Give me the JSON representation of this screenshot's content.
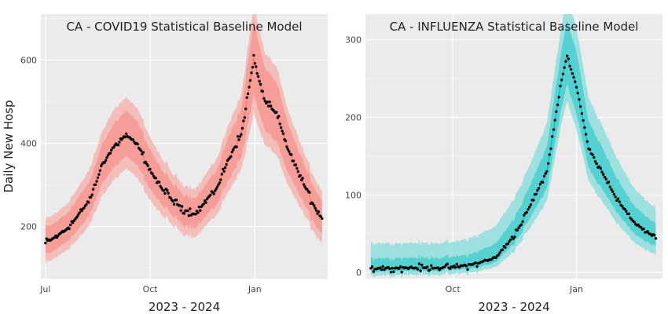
{
  "chart_data": [
    {
      "type": "line",
      "title": "CA - COVID19 Statistical Baseline Model",
      "xlabel": "2023 - 2024",
      "ylabel": "Daily New Hosp",
      "x_range": [
        "2023-06-27",
        "2024-03-05"
      ],
      "ylim": [
        75,
        710
      ],
      "y_ticks": [
        200,
        400,
        600
      ],
      "x_ticks": [
        {
          "date": "2023-07-01",
          "label": "Jul"
        },
        {
          "date": "2023-10-01",
          "label": "Oct"
        },
        {
          "date": "2024-01-01",
          "label": "Jan"
        }
      ],
      "grid": true,
      "legend": "none",
      "color_band": "#f4b6b0",
      "color_inner": "#f8766d",
      "color_points": "#000000",
      "x": [
        "2023-07-01",
        "2023-07-10",
        "2023-07-20",
        "2023-07-31",
        "2023-08-10",
        "2023-08-20",
        "2023-08-31",
        "2023-09-10",
        "2023-09-20",
        "2023-09-30",
        "2023-10-10",
        "2023-10-20",
        "2023-10-31",
        "2023-11-10",
        "2023-11-20",
        "2023-11-30",
        "2023-12-10",
        "2023-12-20",
        "2023-12-31",
        "2024-01-10",
        "2024-01-20",
        "2024-01-31",
        "2024-02-10",
        "2024-02-20",
        "2024-02-29"
      ],
      "y": [
        160,
        175,
        195,
        230,
        270,
        350,
        395,
        420,
        395,
        340,
        295,
        265,
        240,
        230,
        265,
        300,
        370,
        420,
        600,
        500,
        470,
        380,
        320,
        260,
        220
      ],
      "lower_80": [
        130,
        145,
        165,
        195,
        235,
        305,
        345,
        370,
        345,
        295,
        255,
        228,
        205,
        196,
        228,
        260,
        320,
        365,
        515,
        430,
        402,
        325,
        272,
        218,
        182
      ],
      "upper_80": [
        195,
        210,
        232,
        272,
        315,
        400,
        450,
        478,
        450,
        390,
        340,
        305,
        278,
        268,
        305,
        345,
        425,
        480,
        690,
        578,
        545,
        440,
        372,
        305,
        262
      ],
      "lower_95": [
        110,
        125,
        145,
        172,
        210,
        275,
        315,
        340,
        315,
        268,
        230,
        205,
        182,
        174,
        205,
        235,
        292,
        335,
        470,
        395,
        370,
        295,
        245,
        195,
        160
      ],
      "upper_95": [
        215,
        232,
        255,
        298,
        345,
        430,
        485,
        510,
        482,
        420,
        368,
        330,
        300,
        290,
        330,
        372,
        455,
        515,
        730,
        615,
        582,
        472,
        400,
        330,
        285
      ]
    },
    {
      "type": "line",
      "title": "CA - INFLUENZA Statistical Baseline Model",
      "xlabel": "2023 - 2024",
      "ylabel": "",
      "x_range": [
        "2023-07-28",
        "2024-03-05"
      ],
      "ylim": [
        -8,
        333
      ],
      "y_ticks": [
        0,
        100,
        200,
        300
      ],
      "x_ticks": [
        {
          "date": "2023-10-01",
          "label": "Oct"
        },
        {
          "date": "2024-01-01",
          "label": "Jan"
        }
      ],
      "grid": true,
      "legend": "none",
      "color_band": "#8fdedd",
      "color_inner": "#00bfc4",
      "color_points": "#000000",
      "x": [
        "2023-08-01",
        "2023-08-15",
        "2023-09-01",
        "2023-09-15",
        "2023-10-01",
        "2023-10-15",
        "2023-11-01",
        "2023-11-10",
        "2023-11-20",
        "2023-11-30",
        "2023-12-10",
        "2023-12-20",
        "2023-12-25",
        "2024-01-01",
        "2024-01-10",
        "2024-01-20",
        "2024-01-31",
        "2024-02-10",
        "2024-02-20",
        "2024-02-29"
      ],
      "y": [
        5,
        6,
        6,
        6,
        7,
        10,
        18,
        35,
        60,
        95,
        130,
        240,
        280,
        240,
        160,
        130,
        95,
        70,
        55,
        45
      ],
      "lower_80": [
        1,
        2,
        2,
        2,
        3,
        5,
        12,
        27,
        48,
        78,
        108,
        205,
        243,
        205,
        135,
        108,
        78,
        55,
        42,
        33
      ],
      "upper_80": [
        18,
        19,
        19,
        19,
        20,
        24,
        36,
        55,
        84,
        122,
        162,
        278,
        325,
        285,
        195,
        162,
        122,
        92,
        75,
        62
      ],
      "lower_95": [
        -4,
        -3,
        -3,
        -3,
        -2,
        0,
        6,
        18,
        38,
        64,
        92,
        185,
        222,
        185,
        118,
        92,
        64,
        43,
        31,
        22
      ],
      "upper_95": [
        38,
        38,
        38,
        38,
        39,
        45,
        58,
        80,
        110,
        150,
        192,
        310,
        355,
        315,
        225,
        190,
        148,
        115,
        96,
        82
      ]
    }
  ]
}
